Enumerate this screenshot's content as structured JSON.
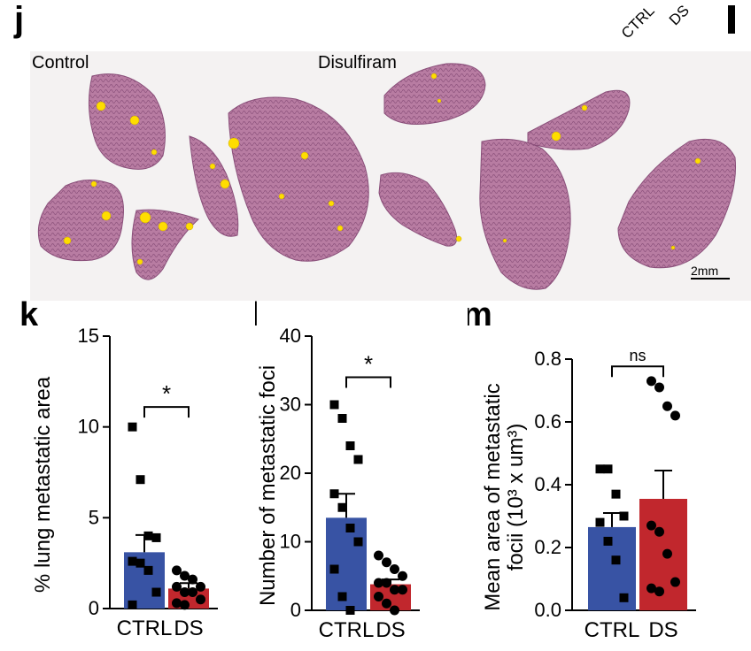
{
  "panel_j": {
    "letter": "j",
    "left_label": "Control",
    "right_label": "Disulfiram",
    "scale_bar_label": "2mm",
    "legend_labels": [
      "CTRL",
      "DS"
    ]
  },
  "colors": {
    "ctrl_bar": "#3853a4",
    "ds_bar": "#c1272d",
    "tissue": "#b87ca2",
    "tissue_edge": "#8a4f7a",
    "foci": "#ffdd00",
    "background": "#f4f2f2"
  },
  "chart_data": [
    {
      "panel": "k",
      "type": "bar",
      "categories": [
        "CTRL",
        "DS"
      ],
      "values": [
        3.1,
        1.1
      ],
      "errors": [
        0.95,
        0.3
      ],
      "points": [
        [
          10,
          7.1,
          4.0,
          3.9,
          2.6,
          2.5,
          2.1,
          0.9,
          0.2
        ],
        [
          2.1,
          1.8,
          1.6,
          1.2,
          1.2,
          0.9,
          0.9,
          0.5,
          0.3,
          0.2
        ]
      ],
      "title": "",
      "xlabel": "",
      "ylabel": "% lung metastatic area",
      "ylim": [
        0,
        15
      ],
      "yticks": [
        "0",
        "5",
        "10",
        "15"
      ],
      "significance": "*"
    },
    {
      "panel": "l",
      "type": "bar",
      "categories": [
        "CTRL",
        "DS"
      ],
      "values": [
        13.5,
        3.8
      ],
      "errors": [
        3.5,
        0.7
      ],
      "points": [
        [
          30,
          28,
          24,
          22,
          17,
          15,
          12,
          10,
          6,
          2,
          0
        ],
        [
          8,
          7,
          6,
          5,
          4,
          4,
          3,
          3,
          2,
          1,
          0
        ]
      ],
      "title": "",
      "xlabel": "",
      "ylabel": "Number of metastatic foci",
      "ylim": [
        0,
        40
      ],
      "yticks": [
        "0",
        "10",
        "20",
        "30",
        "40"
      ],
      "significance": "*"
    },
    {
      "panel": "m",
      "type": "bar",
      "categories": [
        "CTRL",
        "DS"
      ],
      "values": [
        0.265,
        0.355
      ],
      "errors": [
        0.045,
        0.09
      ],
      "points": [
        [
          0.45,
          0.45,
          0.37,
          0.3,
          0.28,
          0.22,
          0.16,
          0.04
        ],
        [
          0.73,
          0.71,
          0.65,
          0.62,
          0.27,
          0.25,
          0.18,
          0.09,
          0.07,
          0.06
        ]
      ],
      "title": "",
      "xlabel": "",
      "ylabel": "Mean area of metastatic",
      "ylabel2": "focii (10³ x um³)",
      "ylim": [
        0,
        0.8
      ],
      "yticks": [
        "0.0",
        "0.2",
        "0.4",
        "0.6",
        "0.8"
      ],
      "significance": "ns"
    }
  ]
}
